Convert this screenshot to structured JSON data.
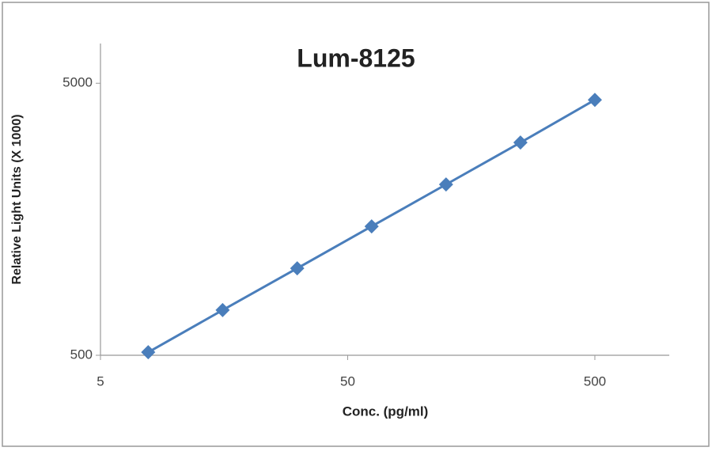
{
  "chart_data": {
    "type": "line",
    "title": "Lum-8125",
    "x_label": "Conc. (pg/ml)",
    "y_label": "Relative Light Units (X 1000)",
    "x": [
      7.8,
      15.6,
      31.25,
      62.5,
      125,
      250,
      500
    ],
    "series": [
      {
        "name": "Lum-8125",
        "color": "#4a7ebb",
        "values": [
          513,
          733,
          1044,
          1489,
          2123,
          3027,
          4345
        ]
      }
    ],
    "xlim": [
      5,
      1000
    ],
    "ylim": [
      500,
      7000
    ],
    "xticks": [
      5,
      50,
      500
    ],
    "yticks": [
      500,
      5000
    ],
    "xscale": "log",
    "yscale": "log",
    "grid": false
  }
}
